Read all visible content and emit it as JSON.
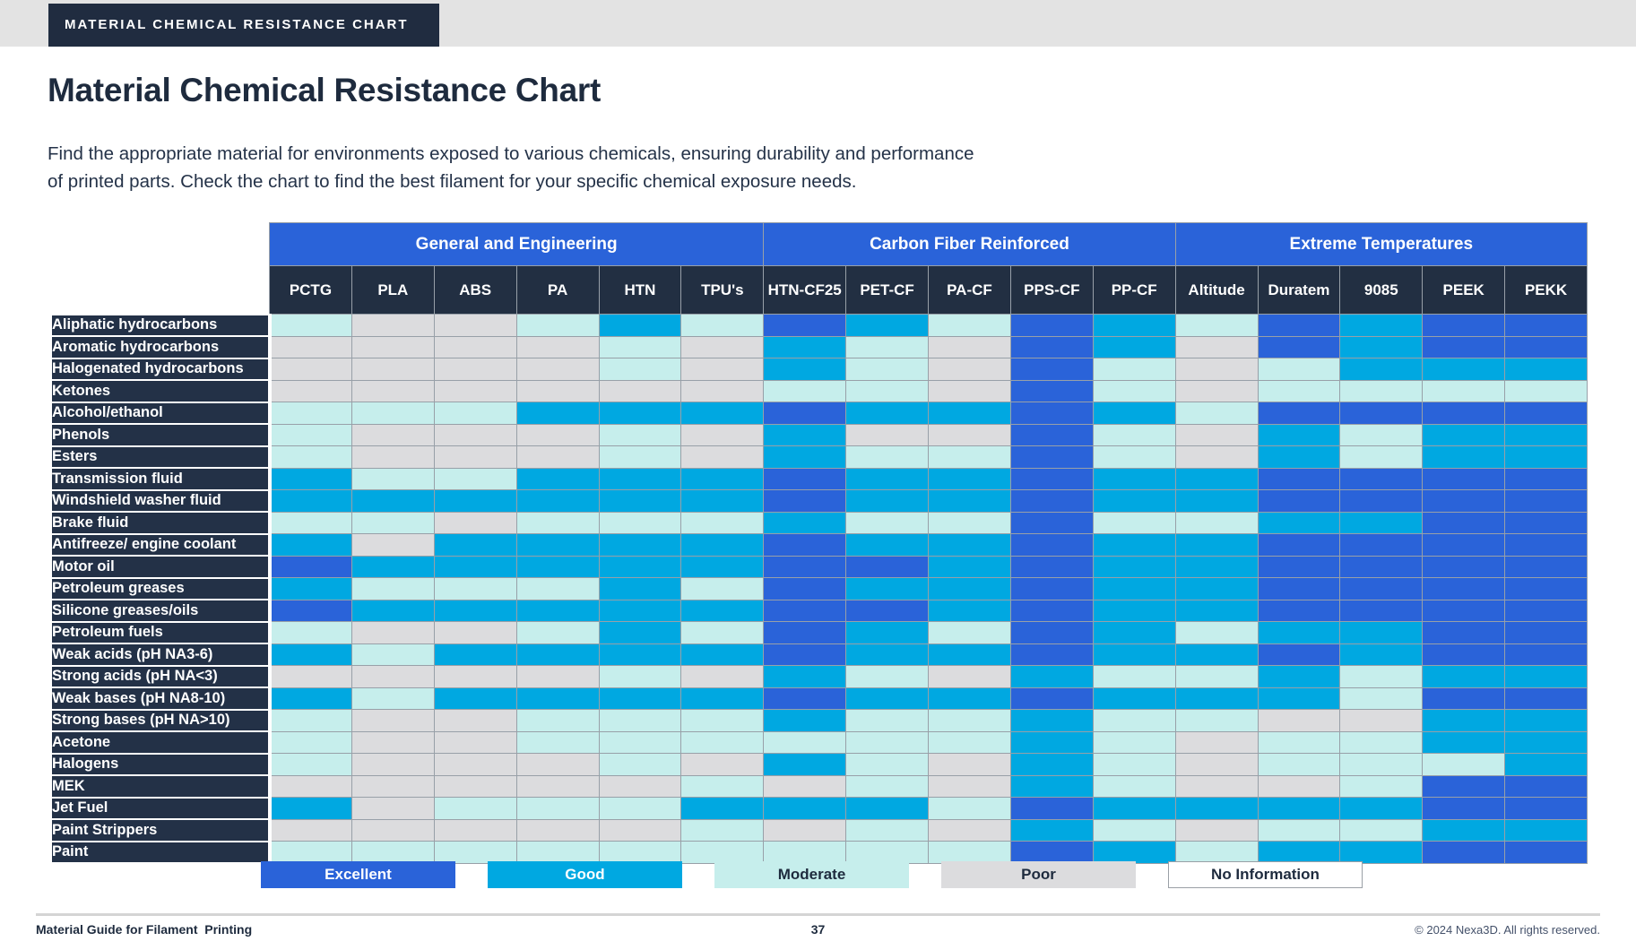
{
  "badge": "MATERIAL CHEMICAL RESISTANCE CHART",
  "title": "Material Chemical Resistance Chart",
  "subtitle_line1": "Find the appropriate material for environments exposed to various chemicals, ensuring durability and performance",
  "subtitle_line2": "of printed parts. Check the chart to find the best filament for your specific chemical exposure needs.",
  "chart_data": {
    "type": "heatmap",
    "title": "Material Chemical Resistance Chart",
    "column_groups": [
      {
        "label": "General and Engineering",
        "span": 6
      },
      {
        "label": "Carbon Fiber Reinforced",
        "span": 5
      },
      {
        "label": "Extreme Temperatures",
        "span": 5
      }
    ],
    "columns": [
      "PCTG",
      "PLA",
      "ABS",
      "PA",
      "HTN",
      "TPU's",
      "HTN-CF25",
      "PET-CF",
      "PA-CF",
      "PPS-CF",
      "PP-CF",
      "Altitude",
      "Duratem",
      "9085",
      "PEEK",
      "PEKK"
    ],
    "scale": {
      "E": "Excellent",
      "G": "Good",
      "M": "Moderate",
      "P": "Poor",
      "N": "No Information"
    },
    "colors": {
      "E": "#2a63d9",
      "G": "#00a8e1",
      "M": "#c6eeec",
      "P": "#dcdcde",
      "N": "#ffffff"
    },
    "rows": [
      {
        "chemical": "Aliphatic hydrocarbons",
        "ratings": [
          "M",
          "P",
          "P",
          "M",
          "G",
          "M",
          "E",
          "G",
          "M",
          "E",
          "G",
          "M",
          "E",
          "G",
          "E",
          "E"
        ]
      },
      {
        "chemical": "Aromatic hydrocarbons",
        "ratings": [
          "P",
          "P",
          "P",
          "P",
          "M",
          "P",
          "G",
          "M",
          "P",
          "E",
          "G",
          "P",
          "E",
          "G",
          "E",
          "E"
        ]
      },
      {
        "chemical": "Halogenated hydrocarbons",
        "ratings": [
          "P",
          "P",
          "P",
          "P",
          "M",
          "P",
          "G",
          "M",
          "P",
          "E",
          "M",
          "P",
          "M",
          "G",
          "G",
          "G"
        ]
      },
      {
        "chemical": "Ketones",
        "ratings": [
          "P",
          "P",
          "P",
          "P",
          "P",
          "P",
          "M",
          "M",
          "P",
          "E",
          "M",
          "P",
          "M",
          "M",
          "M",
          "M"
        ]
      },
      {
        "chemical": "Alcohol/ethanol",
        "ratings": [
          "M",
          "M",
          "M",
          "G",
          "G",
          "G",
          "E",
          "G",
          "G",
          "E",
          "G",
          "M",
          "E",
          "E",
          "E",
          "E"
        ]
      },
      {
        "chemical": "Phenols",
        "ratings": [
          "M",
          "P",
          "P",
          "P",
          "M",
          "P",
          "G",
          "P",
          "P",
          "E",
          "M",
          "P",
          "G",
          "M",
          "G",
          "G"
        ]
      },
      {
        "chemical": "Esters",
        "ratings": [
          "M",
          "P",
          "P",
          "P",
          "M",
          "P",
          "G",
          "M",
          "M",
          "E",
          "M",
          "P",
          "G",
          "M",
          "G",
          "G"
        ]
      },
      {
        "chemical": "Transmission fluid",
        "ratings": [
          "G",
          "M",
          "M",
          "G",
          "G",
          "G",
          "E",
          "G",
          "G",
          "E",
          "G",
          "G",
          "E",
          "E",
          "E",
          "E"
        ]
      },
      {
        "chemical": "Windshield washer fluid",
        "ratings": [
          "G",
          "G",
          "G",
          "G",
          "G",
          "G",
          "E",
          "G",
          "G",
          "E",
          "G",
          "G",
          "E",
          "E",
          "E",
          "E"
        ]
      },
      {
        "chemical": "Brake fluid",
        "ratings": [
          "M",
          "M",
          "P",
          "M",
          "M",
          "M",
          "G",
          "M",
          "M",
          "E",
          "M",
          "M",
          "G",
          "G",
          "E",
          "E"
        ]
      },
      {
        "chemical": "Antifreeze/ engine coolant",
        "ratings": [
          "G",
          "P",
          "G",
          "G",
          "G",
          "G",
          "E",
          "G",
          "G",
          "E",
          "G",
          "G",
          "E",
          "E",
          "E",
          "E"
        ]
      },
      {
        "chemical": "Motor oil",
        "ratings": [
          "E",
          "G",
          "G",
          "G",
          "G",
          "G",
          "E",
          "E",
          "G",
          "E",
          "G",
          "G",
          "E",
          "E",
          "E",
          "E"
        ]
      },
      {
        "chemical": "Petroleum greases",
        "ratings": [
          "G",
          "M",
          "M",
          "M",
          "G",
          "M",
          "E",
          "G",
          "G",
          "E",
          "G",
          "G",
          "E",
          "E",
          "E",
          "E"
        ]
      },
      {
        "chemical": "Silicone greases/oils",
        "ratings": [
          "E",
          "G",
          "G",
          "G",
          "G",
          "G",
          "E",
          "E",
          "G",
          "E",
          "G",
          "G",
          "E",
          "E",
          "E",
          "E"
        ]
      },
      {
        "chemical": "Petroleum fuels",
        "ratings": [
          "M",
          "P",
          "P",
          "M",
          "G",
          "M",
          "E",
          "G",
          "M",
          "E",
          "G",
          "M",
          "G",
          "G",
          "E",
          "E"
        ]
      },
      {
        "chemical": "Weak acids (pH NA3-6)",
        "ratings": [
          "G",
          "M",
          "G",
          "G",
          "G",
          "G",
          "E",
          "G",
          "G",
          "E",
          "G",
          "G",
          "E",
          "G",
          "E",
          "E"
        ]
      },
      {
        "chemical": "Strong acids (pH NA<3)",
        "ratings": [
          "P",
          "P",
          "P",
          "P",
          "M",
          "P",
          "G",
          "M",
          "P",
          "G",
          "M",
          "M",
          "G",
          "M",
          "G",
          "G"
        ]
      },
      {
        "chemical": "Weak bases (pH NA8-10)",
        "ratings": [
          "G",
          "M",
          "G",
          "G",
          "G",
          "G",
          "E",
          "G",
          "G",
          "E",
          "G",
          "G",
          "G",
          "M",
          "E",
          "E"
        ]
      },
      {
        "chemical": "Strong bases (pH NA>10)",
        "ratings": [
          "M",
          "P",
          "P",
          "M",
          "M",
          "M",
          "G",
          "M",
          "M",
          "G",
          "M",
          "M",
          "P",
          "P",
          "G",
          "G"
        ]
      },
      {
        "chemical": "Acetone",
        "ratings": [
          "M",
          "P",
          "P",
          "M",
          "M",
          "M",
          "M",
          "M",
          "M",
          "G",
          "M",
          "P",
          "M",
          "M",
          "G",
          "G"
        ]
      },
      {
        "chemical": "Halogens",
        "ratings": [
          "M",
          "P",
          "P",
          "P",
          "M",
          "P",
          "G",
          "M",
          "P",
          "G",
          "M",
          "P",
          "M",
          "M",
          "M",
          "G"
        ]
      },
      {
        "chemical": "MEK",
        "ratings": [
          "P",
          "P",
          "P",
          "P",
          "P",
          "M",
          "P",
          "M",
          "P",
          "G",
          "M",
          "P",
          "P",
          "M",
          "E",
          "E"
        ]
      },
      {
        "chemical": "Jet Fuel",
        "ratings": [
          "G",
          "P",
          "M",
          "M",
          "M",
          "G",
          "G",
          "G",
          "M",
          "E",
          "G",
          "G",
          "G",
          "G",
          "E",
          "E"
        ]
      },
      {
        "chemical": "Paint Strippers",
        "ratings": [
          "P",
          "P",
          "P",
          "P",
          "P",
          "M",
          "P",
          "M",
          "P",
          "G",
          "M",
          "P",
          "M",
          "M",
          "G",
          "G"
        ]
      },
      {
        "chemical": "Paint",
        "ratings": [
          "M",
          "M",
          "M",
          "M",
          "M",
          "M",
          "M",
          "M",
          "M",
          "E",
          "G",
          "M",
          "G",
          "G",
          "E",
          "E"
        ]
      }
    ]
  },
  "legend": [
    {
      "key": "E",
      "label": "Excellent"
    },
    {
      "key": "G",
      "label": "Good"
    },
    {
      "key": "M",
      "label": "Moderate"
    },
    {
      "key": "P",
      "label": "Poor"
    },
    {
      "key": "N",
      "label": "No Information"
    }
  ],
  "footer": {
    "left": "Material Guide for Filament  Printing",
    "page": "37",
    "right": "© 2024 Nexa3D. All rights reserved."
  }
}
